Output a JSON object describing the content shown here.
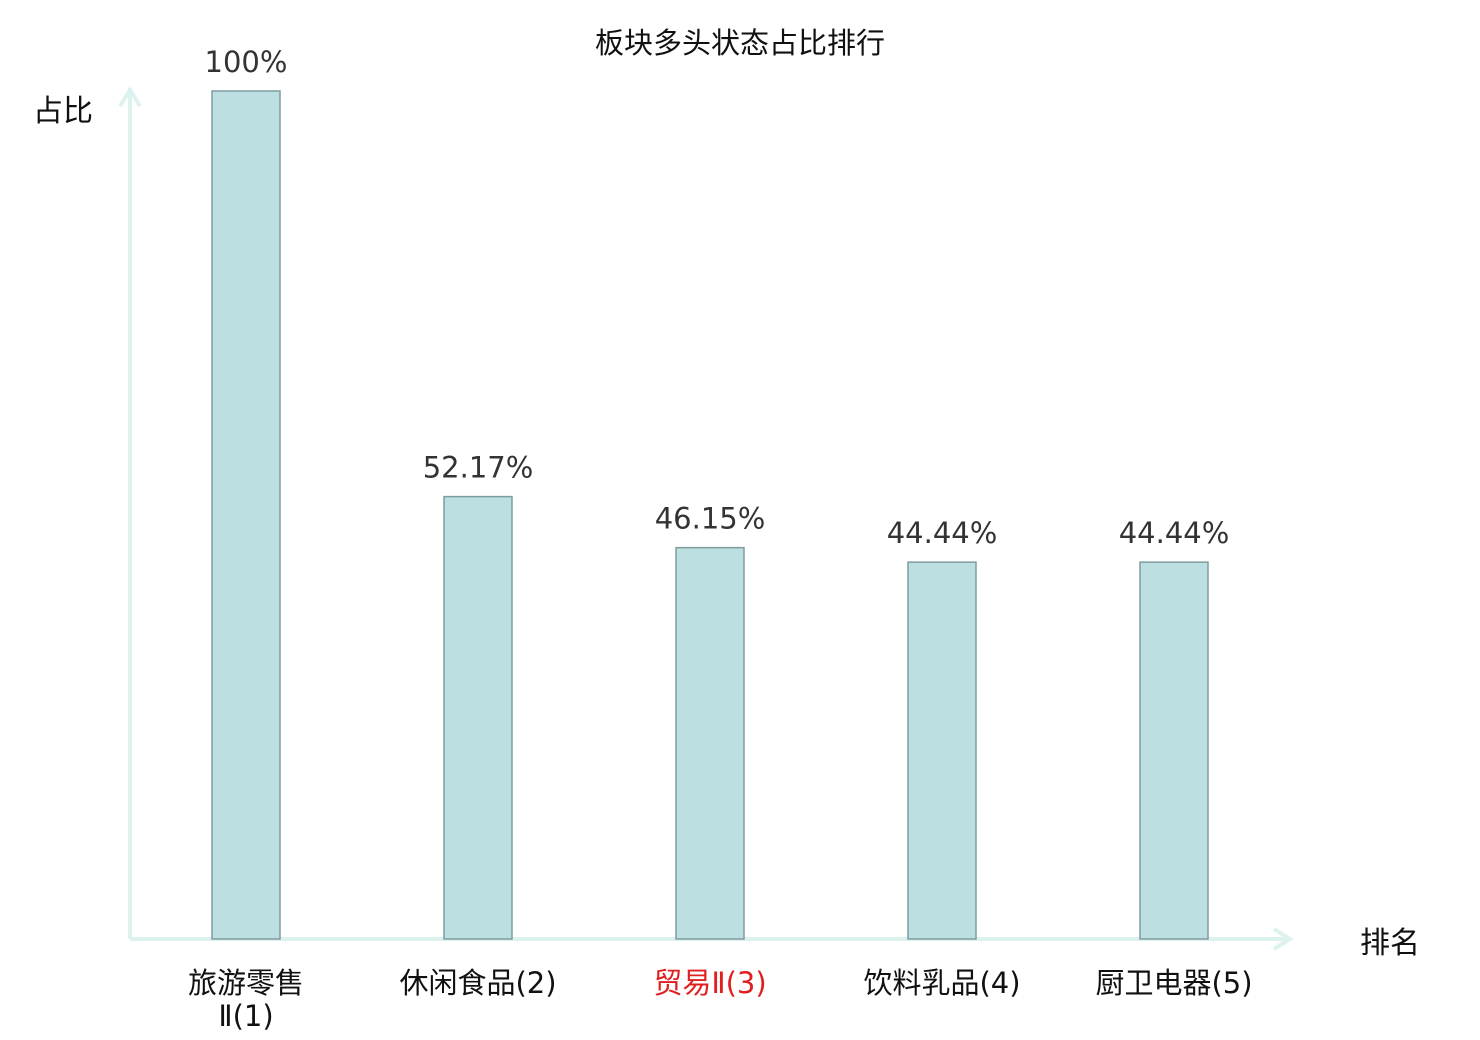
{
  "chart_data": {
    "type": "bar",
    "title": "板块多头状态占比排行",
    "ylabel": "占比",
    "xlabel": "排名",
    "ylim": [
      0,
      100
    ],
    "categories": [
      "旅游零售Ⅱ(1)",
      "休闲食品(2)",
      "贸易Ⅱ(3)",
      "饮料乳品(4)",
      "厨卫电器(5)"
    ],
    "category_lines": [
      [
        "旅游零售",
        "Ⅱ(1)"
      ],
      [
        "休闲食品(2)"
      ],
      [
        "贸易Ⅱ(3)"
      ],
      [
        "饮料乳品(4)"
      ],
      [
        "厨卫电器(5)"
      ]
    ],
    "highlight_index": 2,
    "values": [
      100,
      52.17,
      46.15,
      44.44,
      44.44
    ],
    "value_labels": [
      "100%",
      "52.17%",
      "46.15%",
      "44.44%",
      "44.44%"
    ],
    "grid": false,
    "colors": {
      "bar_fill": "#bce0e2",
      "bar_stroke": "#7f9c9e",
      "axis": "#ddf2ef",
      "text": "#111111",
      "value_text": "#333333",
      "highlight_text": "#e02020"
    }
  }
}
